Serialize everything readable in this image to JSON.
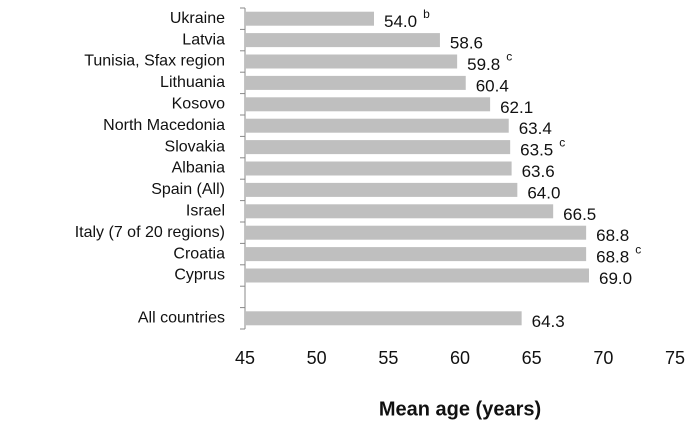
{
  "chart_data": {
    "type": "bar",
    "orientation": "horizontal",
    "x_label": "Mean age (years)",
    "categories": [
      "Ukraine",
      "Latvia",
      "Tunisia, Sfax region",
      "Lithuania",
      "Kosovo",
      "North Macedonia",
      "Slovakia",
      "Albania",
      "Spain (All)",
      "Israel",
      "Italy (7 of 20 regions)",
      "Croatia",
      "Cyprus",
      null,
      "All countries"
    ],
    "values": [
      54.0,
      58.6,
      59.8,
      60.4,
      62.1,
      63.4,
      63.5,
      63.6,
      64.0,
      66.5,
      68.8,
      68.8,
      69.0,
      null,
      64.3
    ],
    "value_labels": [
      "54.0",
      "58.6",
      "59.8",
      "60.4",
      "62.1",
      "63.4",
      "63.5",
      "63.6",
      "64.0",
      "66.5",
      "68.8",
      "68.8",
      "69.0",
      null,
      "64.3"
    ],
    "annotations": [
      "b",
      null,
      "c",
      null,
      null,
      null,
      "c",
      null,
      null,
      null,
      null,
      "c",
      null,
      null,
      null
    ],
    "color": "#bfbfbf",
    "xlim": [
      45,
      75
    ],
    "xticks": [
      45,
      50,
      55,
      60,
      65,
      70,
      75
    ],
    "grid": false
  }
}
